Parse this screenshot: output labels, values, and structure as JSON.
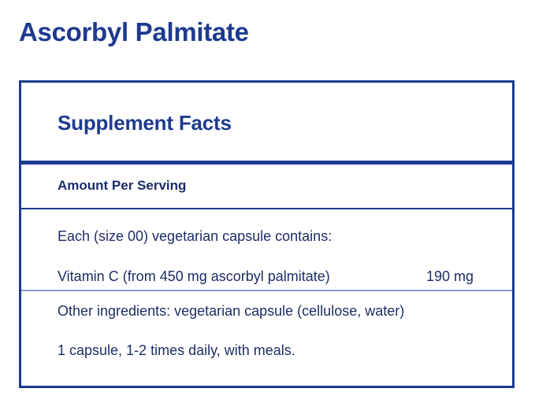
{
  "product": {
    "title": "Ascorbyl Palmitate"
  },
  "facts": {
    "heading": "Supplement Facts",
    "amount_per_serving_label": "Amount Per Serving",
    "serving_description": "Each (size 00) vegetarian capsule contains:",
    "ingredients": [
      {
        "name": "Vitamin C (from 450 mg ascorbyl palmitate)",
        "amount": "190 mg"
      }
    ],
    "other_ingredients": "Other ingredients: vegetarian capsule (cellulose, water)",
    "directions": "1 capsule, 1-2 times daily, with meals."
  },
  "colors": {
    "brand_blue": "#1d3a8f",
    "text_navy": "#1f2d66",
    "divider_light": "#8a9cc9"
  }
}
